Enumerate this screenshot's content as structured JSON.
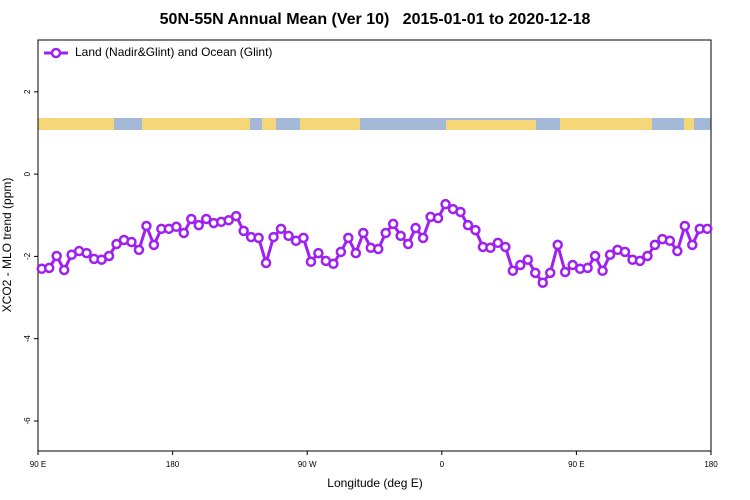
{
  "chart_data": {
    "type": "line",
    "title": "50N-55N Annual Mean (Ver 10)   2015-01-01 to 2020-12-18",
    "xlabel": "Longitude (deg E)",
    "ylabel": "XCO2 - MLO trend (ppm)",
    "xlim": [
      90,
      540
    ],
    "xticks": [
      {
        "value": 90,
        "label": "90 E"
      },
      180,
      {
        "value": 270,
        "label": "90 W"
      },
      {
        "value": 360,
        "label": "0"
      },
      {
        "value": 450,
        "label": "90 E"
      },
      {
        "value": 540,
        "label": "180"
      }
    ],
    "ylim": [
      -6.73,
      3.26
    ],
    "yticks": [
      2,
      0,
      -2,
      -4,
      -6
    ],
    "legend": "top-left",
    "x": [
      92.5,
      97.5,
      102.5,
      107.5,
      112.5,
      117.5,
      122.5,
      127.5,
      132.5,
      137.5,
      142.5,
      147.5,
      152.5,
      157.5,
      162.5,
      167.5,
      172.5,
      177.5,
      182.5,
      187.5,
      192.5,
      197.5,
      202.5,
      207.5,
      212.5,
      217.5,
      222.5,
      227.5,
      232.5,
      237.5,
      242.5,
      247.5,
      252.5,
      257.5,
      262.5,
      267.5,
      272.5,
      277.5,
      282.5,
      287.5,
      292.5,
      297.5,
      302.5,
      307.5,
      312.5,
      317.5,
      322.5,
      327.5,
      332.5,
      337.5,
      342.5,
      347.5,
      352.5,
      357.5,
      362.5,
      367.5,
      372.5,
      377.5,
      382.5,
      387.5,
      392.5,
      397.5,
      402.5,
      407.5,
      412.5,
      417.5,
      422.5,
      427.5,
      432.5,
      437.5,
      442.5,
      447.5,
      452.5,
      457.5,
      462.5,
      467.5,
      472.5,
      477.5,
      482.5,
      487.5,
      492.5,
      497.5,
      502.5,
      507.5,
      512.5,
      517.5,
      522.5,
      527.5,
      532.5,
      537.5
    ],
    "series": [
      {
        "name": "Land (Nadir&Glint) and Ocean (Glint)",
        "color": "#a020f0",
        "values": [
          -2.3,
          -2.28,
          -1.99,
          -2.33,
          -1.96,
          -1.87,
          -1.92,
          -2.06,
          -2.08,
          -1.99,
          -1.7,
          -1.6,
          -1.65,
          -1.84,
          -1.26,
          -1.72,
          -1.33,
          -1.33,
          -1.28,
          -1.43,
          -1.09,
          -1.24,
          -1.09,
          -1.19,
          -1.16,
          -1.12,
          -1.02,
          -1.38,
          -1.53,
          -1.55,
          -2.16,
          -1.53,
          -1.33,
          -1.5,
          -1.62,
          -1.55,
          -2.13,
          -1.92,
          -2.11,
          -2.18,
          -1.89,
          -1.55,
          -1.92,
          -1.43,
          -1.79,
          -1.82,
          -1.43,
          -1.21,
          -1.5,
          -1.7,
          -1.31,
          -1.55,
          -1.04,
          -1.07,
          -0.73,
          -0.85,
          -0.92,
          -1.24,
          -1.36,
          -1.77,
          -1.79,
          -1.67,
          -1.77,
          -2.35,
          -2.21,
          -2.08,
          -2.4,
          -2.64,
          -2.4,
          -1.72,
          -2.38,
          -2.21,
          -2.3,
          -2.28,
          -1.99,
          -2.35,
          -1.96,
          -1.84,
          -1.89,
          -2.08,
          -2.11,
          -1.99,
          -1.72,
          -1.58,
          -1.62,
          -1.87,
          -1.26,
          -1.72,
          -1.33,
          -1.33
        ]
      }
    ]
  }
}
